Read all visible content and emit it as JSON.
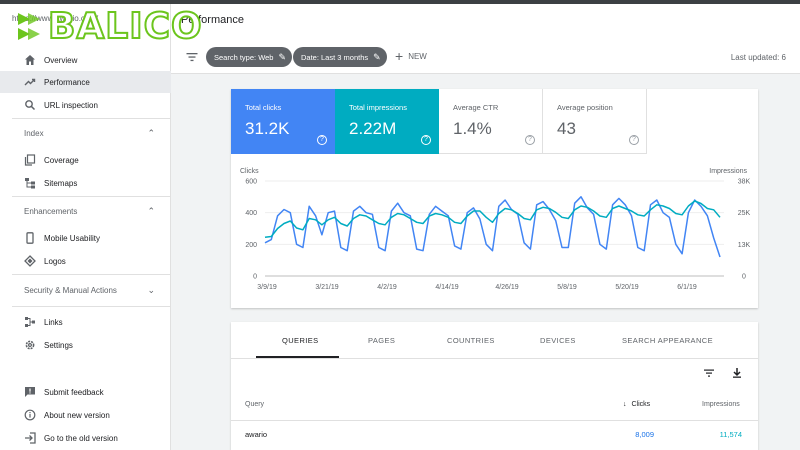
{
  "brand": {
    "logo_text": "BALICO",
    "domain": "https://www.awario.com/",
    "logo_color": "#6cc51d"
  },
  "header": {
    "title": "Performance"
  },
  "sidebar": {
    "items_top": [
      {
        "label": "Overview",
        "icon": "home-icon"
      },
      {
        "label": "Performance",
        "icon": "trending-up-icon",
        "active": true
      },
      {
        "label": "URL inspection",
        "icon": "search-icon"
      }
    ],
    "sections": [
      {
        "title": "Index",
        "items": [
          {
            "label": "Coverage",
            "icon": "copy-icon"
          },
          {
            "label": "Sitemaps",
            "icon": "sitemap-icon"
          }
        ]
      },
      {
        "title": "Enhancements",
        "items": [
          {
            "label": "Mobile Usability",
            "icon": "phone-icon"
          },
          {
            "label": "Logos",
            "icon": "diamond-icon"
          }
        ]
      },
      {
        "title": "Security & Manual Actions",
        "items": []
      }
    ],
    "items_bottom": [
      {
        "label": "Links",
        "icon": "links-icon"
      },
      {
        "label": "Settings",
        "icon": "gear-icon"
      }
    ],
    "footer": [
      {
        "label": "Submit feedback",
        "icon": "feedback-icon"
      },
      {
        "label": "About new version",
        "icon": "info-icon"
      },
      {
        "label": "Go to the old version",
        "icon": "exit-icon"
      }
    ]
  },
  "toolbar": {
    "chip_search_type": "Search type: Web",
    "chip_date": "Date: Last 3 months",
    "new_label": "NEW",
    "last_updated": "Last updated: 6"
  },
  "metrics": {
    "clicks": {
      "label": "Total clicks",
      "value": "31.2K"
    },
    "impressions": {
      "label": "Total impressions",
      "value": "2.22M"
    },
    "ctr": {
      "label": "Average CTR",
      "value": "1.4%"
    },
    "position": {
      "label": "Average position",
      "value": "43"
    }
  },
  "colors": {
    "clicks": "#4285f4",
    "impressions": "#00acc1"
  },
  "chart_data": {
    "type": "line",
    "title": "",
    "xlabel": "",
    "ylabel": "Clicks",
    "y2label": "Impressions",
    "x_ticks": [
      "3/9/19",
      "3/21/19",
      "4/2/19",
      "4/14/19",
      "4/26/19",
      "5/8/19",
      "5/20/19",
      "6/1/19"
    ],
    "y_ticks": [
      "0",
      "200",
      "400",
      "600"
    ],
    "y2_ticks": [
      "0",
      "13K",
      "25K",
      "38K"
    ],
    "ylim": [
      0,
      600
    ],
    "y2lim": [
      0,
      38000
    ],
    "series": [
      {
        "name": "Clicks",
        "axis": "left",
        "color": "#4285f4",
        "values": [
          210,
          230,
          380,
          420,
          400,
          200,
          180,
          440,
          380,
          260,
          400,
          410,
          180,
          160,
          410,
          440,
          400,
          390,
          180,
          160,
          410,
          460,
          400,
          380,
          170,
          160,
          390,
          440,
          410,
          380,
          190,
          170,
          400,
          430,
          360,
          200,
          160,
          440,
          480,
          420,
          390,
          210,
          170,
          450,
          470,
          420,
          350,
          180,
          180,
          460,
          500,
          430,
          390,
          200,
          170,
          450,
          490,
          450,
          380,
          180,
          160,
          450,
          480,
          400,
          370,
          200,
          140,
          400,
          480,
          440,
          380,
          240,
          120
        ]
      },
      {
        "name": "Impressions",
        "axis": "right",
        "color": "#00acc1",
        "values": [
          15500,
          15800,
          19000,
          21000,
          22000,
          19200,
          18500,
          23000,
          22500,
          20500,
          22500,
          23500,
          21000,
          20000,
          23000,
          24500,
          24000,
          22500,
          21000,
          20500,
          23500,
          25000,
          24500,
          23000,
          21500,
          21000,
          24000,
          25000,
          24500,
          23500,
          21500,
          21000,
          24000,
          26000,
          26000,
          23500,
          21500,
          25000,
          27000,
          26500,
          25000,
          23000,
          22500,
          26500,
          27500,
          27000,
          25500,
          23500,
          23000,
          26500,
          28000,
          27500,
          26000,
          24000,
          23500,
          27000,
          28000,
          27000,
          26000,
          24500,
          24000,
          26500,
          28500,
          28000,
          27000,
          25000,
          24500,
          28000,
          30000,
          29000,
          27000,
          26500,
          23500
        ]
      }
    ]
  },
  "table": {
    "tabs": [
      "QUERIES",
      "PAGES",
      "COUNTRIES",
      "DEVICES",
      "SEARCH APPEARANCE"
    ],
    "columns": {
      "query": "Query",
      "clicks": "Clicks",
      "impressions": "Impressions"
    },
    "rows": [
      {
        "query": "awario",
        "clicks": "8,009",
        "impressions": "11,574"
      }
    ]
  }
}
